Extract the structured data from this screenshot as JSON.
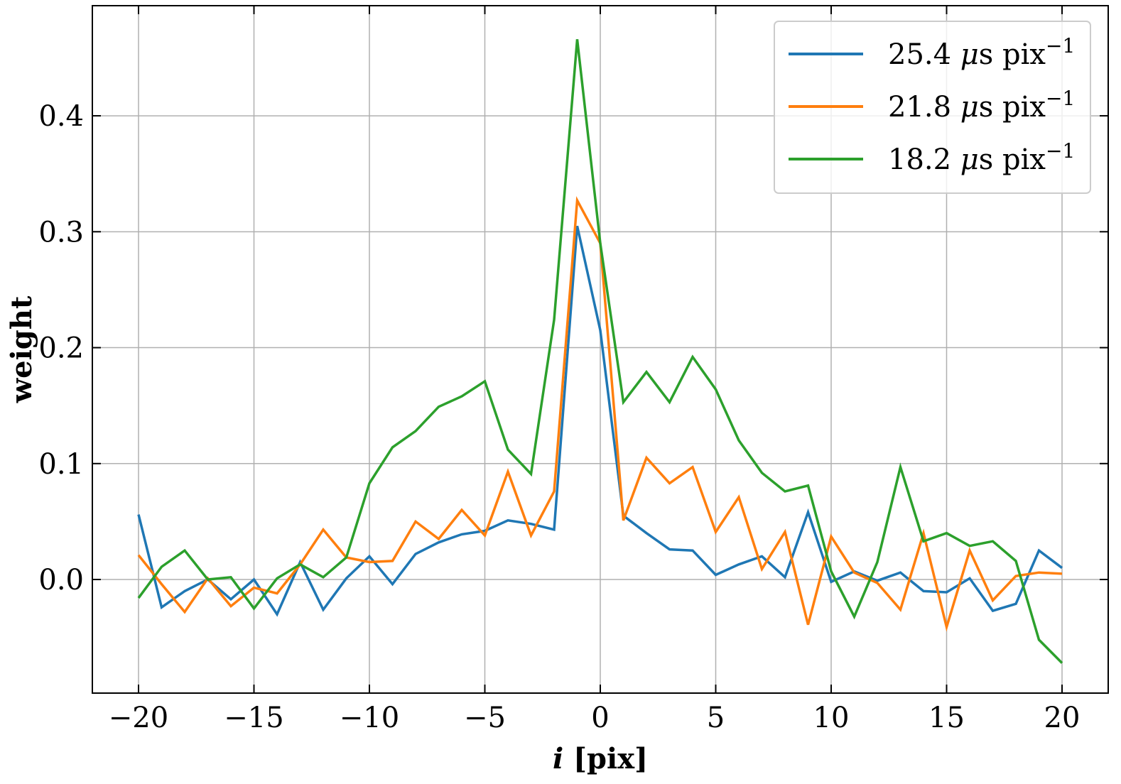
{
  "chart_data": {
    "type": "line",
    "xlabel_var": "i",
    "xlabel_unit": " [pix]",
    "ylabel": "weight",
    "xlim": [
      -22,
      22
    ],
    "ylim": [
      -0.098,
      0.495
    ],
    "xticks": [
      -20,
      -15,
      -10,
      -5,
      0,
      5,
      10,
      15,
      20
    ],
    "xtick_labels": [
      "−20",
      "−15",
      "−10",
      "−5",
      "0",
      "5",
      "10",
      "15",
      "20"
    ],
    "yticks": [
      0.0,
      0.1,
      0.2,
      0.3,
      0.4
    ],
    "ytick_labels": [
      "0.0",
      "0.1",
      "0.2",
      "0.3",
      "0.4"
    ],
    "grid": true,
    "legend_position": "top-right",
    "unit_text": "μs pix",
    "unit_superscript": "−1",
    "x": [
      -20,
      -19,
      -18,
      -17,
      -16,
      -15,
      -14,
      -13,
      -12,
      -11,
      -10,
      -9,
      -8,
      -7,
      -6,
      -5,
      -4,
      -3,
      -2,
      -1,
      0,
      1,
      2,
      3,
      4,
      5,
      6,
      7,
      8,
      9,
      10,
      11,
      12,
      13,
      14,
      15,
      16,
      17,
      18,
      19,
      20
    ],
    "series": [
      {
        "name": "25.4",
        "color": "#1f77b4",
        "values": [
          0.056,
          -0.024,
          -0.01,
          0.0,
          -0.017,
          0.0,
          -0.03,
          0.015,
          -0.026,
          0.001,
          0.02,
          -0.004,
          0.022,
          0.032,
          0.039,
          0.042,
          0.051,
          0.048,
          0.043,
          0.305,
          0.215,
          0.055,
          0.04,
          0.026,
          0.025,
          0.004,
          0.013,
          0.02,
          0.002,
          0.058,
          -0.002,
          0.007,
          -0.001,
          0.006,
          -0.01,
          -0.011,
          0.001,
          -0.027,
          -0.021,
          0.025,
          0.01
        ]
      },
      {
        "name": "21.8",
        "color": "#ff7f0e",
        "values": [
          0.021,
          -0.004,
          -0.028,
          0.001,
          -0.023,
          -0.007,
          -0.012,
          0.013,
          0.043,
          0.019,
          0.015,
          0.016,
          0.05,
          0.035,
          0.06,
          0.038,
          0.093,
          0.038,
          0.076,
          0.327,
          0.29,
          0.051,
          0.105,
          0.083,
          0.097,
          0.041,
          0.071,
          0.009,
          0.041,
          -0.039,
          0.037,
          0.006,
          -0.003,
          -0.026,
          0.04,
          -0.041,
          0.025,
          -0.018,
          0.003,
          0.006,
          0.005
        ]
      },
      {
        "name": "18.2",
        "color": "#2ca02c",
        "values": [
          -0.016,
          0.011,
          0.025,
          0.0,
          0.002,
          -0.025,
          0.001,
          0.013,
          0.002,
          0.019,
          0.083,
          0.114,
          0.128,
          0.149,
          0.158,
          0.171,
          0.112,
          0.091,
          0.224,
          0.466,
          0.29,
          0.153,
          0.179,
          0.153,
          0.192,
          0.164,
          0.12,
          0.092,
          0.076,
          0.081,
          0.007,
          -0.032,
          0.015,
          0.097,
          0.033,
          0.04,
          0.029,
          0.033,
          0.016,
          -0.052,
          -0.072
        ]
      }
    ]
  }
}
